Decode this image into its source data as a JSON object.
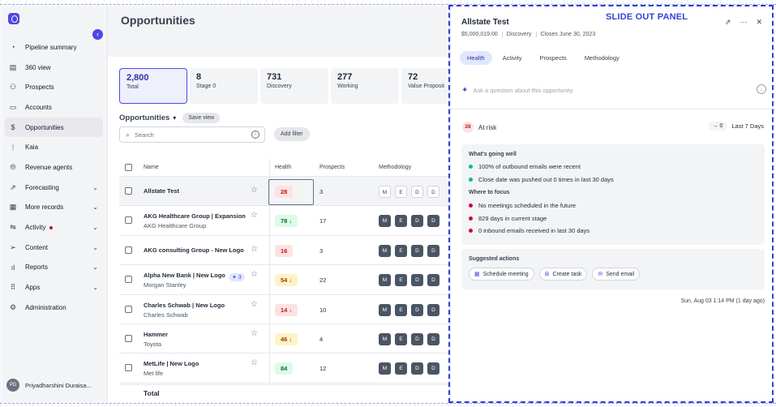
{
  "sidebar": {
    "collapse_icon": "‹",
    "items": [
      {
        "label": "Pipeline summary",
        "icon": "◔",
        "chev": ""
      },
      {
        "label": "360 view",
        "icon": "▤",
        "chev": ""
      },
      {
        "label": "Prospects",
        "icon": "⚇",
        "chev": ""
      },
      {
        "label": "Accounts",
        "icon": "▭",
        "chev": ""
      },
      {
        "label": "Opportunities",
        "icon": "$",
        "chev": ""
      },
      {
        "label": "Kaia",
        "icon": "⁞",
        "chev": ""
      },
      {
        "label": "Revenue agents",
        "icon": "⦾",
        "chev": ""
      },
      {
        "label": "Forecasting",
        "icon": "⇗",
        "chev": "⌄"
      },
      {
        "label": "More records",
        "icon": "▦",
        "chev": "⌄"
      },
      {
        "label": "Activity",
        "icon": "⇋",
        "chev": "⌄"
      },
      {
        "label": "Content",
        "icon": "➢",
        "chev": "⌄"
      },
      {
        "label": "Reports",
        "icon": "ıl",
        "chev": "⌄"
      },
      {
        "label": "Apps",
        "icon": "⠿",
        "chev": "⌄"
      },
      {
        "label": "Administration",
        "icon": "⚙",
        "chev": ""
      }
    ],
    "user_initials": "PD",
    "user_name": "Priyadharshini Duraisa..."
  },
  "main": {
    "title": "Opportunities",
    "stats": [
      {
        "num": "2,800",
        "label": "Total"
      },
      {
        "num": "8",
        "label": "Stage 0"
      },
      {
        "num": "731",
        "label": "Discovery"
      },
      {
        "num": "277",
        "label": "Working"
      },
      {
        "num": "72",
        "label": "Value Proposit"
      }
    ],
    "list_title": "Opportunities",
    "caret": "▾",
    "save_view": "Save view",
    "search_placeholder": "Search",
    "search_icon": "⌕",
    "info_icon": "i",
    "add_filter": "Add filter",
    "columns": {
      "name": "Name",
      "health": "Health",
      "prospects": "Prospects",
      "methodology": "Methodology"
    },
    "rows": [
      {
        "name": "Allstate Test",
        "sub": "",
        "health": "28",
        "health_color": "red",
        "arrow": "",
        "prospects": "3",
        "meth": [
          "M",
          "E",
          "D",
          "D"
        ],
        "meth_on": false,
        "ai": ""
      },
      {
        "name": "AKG Healthcare Group | Expansion",
        "sub": "AKG Healthcare Group",
        "health": "78",
        "health_color": "green",
        "arrow": "↓",
        "prospects": "17",
        "meth": [
          "M",
          "E",
          "D",
          "D"
        ],
        "meth_on": true,
        "ai": ""
      },
      {
        "name": "AKG consulting Group - New Logo",
        "sub": "",
        "health": "16",
        "health_color": "red",
        "arrow": "",
        "prospects": "3",
        "meth": [
          "M",
          "E",
          "D",
          "D"
        ],
        "meth_on": true,
        "ai": ""
      },
      {
        "name": "Alpha New Bank | New Logo",
        "sub": "Morgan Stanley",
        "health": "54",
        "health_color": "yellow",
        "arrow": "↓",
        "prospects": "22",
        "meth": [
          "M",
          "E",
          "D",
          "D"
        ],
        "meth_on": true,
        "ai": "3"
      },
      {
        "name": "Charles Schwab | New Logo",
        "sub": "Charles Schwab",
        "health": "14",
        "health_color": "red",
        "arrow": "↓",
        "prospects": "10",
        "meth": [
          "M",
          "E",
          "D",
          "D"
        ],
        "meth_on": true,
        "ai": ""
      },
      {
        "name": "Hammer",
        "sub": "Toyota",
        "health": "46",
        "health_color": "yellow",
        "arrow": "↓",
        "prospects": "4",
        "meth": [
          "M",
          "E",
          "D",
          "D"
        ],
        "meth_on": true,
        "ai": ""
      },
      {
        "name": "MetLife | New Logo",
        "sub": "Met life",
        "health": "84",
        "health_color": "green",
        "arrow": "",
        "prospects": "12",
        "meth": [
          "M",
          "E",
          "D",
          "D"
        ],
        "meth_on": true,
        "ai": ""
      }
    ],
    "total_label": "Total"
  },
  "panel": {
    "annotation": "SLIDE OUT PANEL",
    "title": "Allstate Test",
    "amount": "$5,000,019.00",
    "stage": "Discovery",
    "closes": "Closes June 30, 2023",
    "icons": {
      "open": "⇗",
      "more": "···",
      "close": "✕"
    },
    "tabs": [
      "Health",
      "Activity",
      "Prospects",
      "Methodology"
    ],
    "ask_placeholder": "Ask a question about this opportunity",
    "ask_icon": "✦",
    "ask_send_icon": "↓",
    "risk_score": "28",
    "risk_label": "At risk",
    "risk_delta": "→ 0",
    "risk_period": "Last 7 Days",
    "going_well_title": "What's going well",
    "going_well": [
      "100% of outbound emails were recent",
      "Close date was pushed out 0 times in last 30 days"
    ],
    "focus_title": "Where to focus",
    "focus": [
      "No meetings scheduled in the future",
      "829 days in current stage",
      "0 inbound emails received in last 30 days"
    ],
    "suggested_title": "Suggested actions",
    "actions": [
      {
        "icon": "▦",
        "label": "Schedule meeting"
      },
      {
        "icon": "⊞",
        "label": "Create task"
      },
      {
        "icon": "✉",
        "label": "Send email"
      }
    ],
    "timestamp": "Sun, Aug 03 1:14 PM (1 day ago)"
  },
  "colors": {
    "accent": "#4f46e5",
    "annotation": "#2f3edb",
    "risk": "#be123c",
    "good": "#10b981"
  }
}
